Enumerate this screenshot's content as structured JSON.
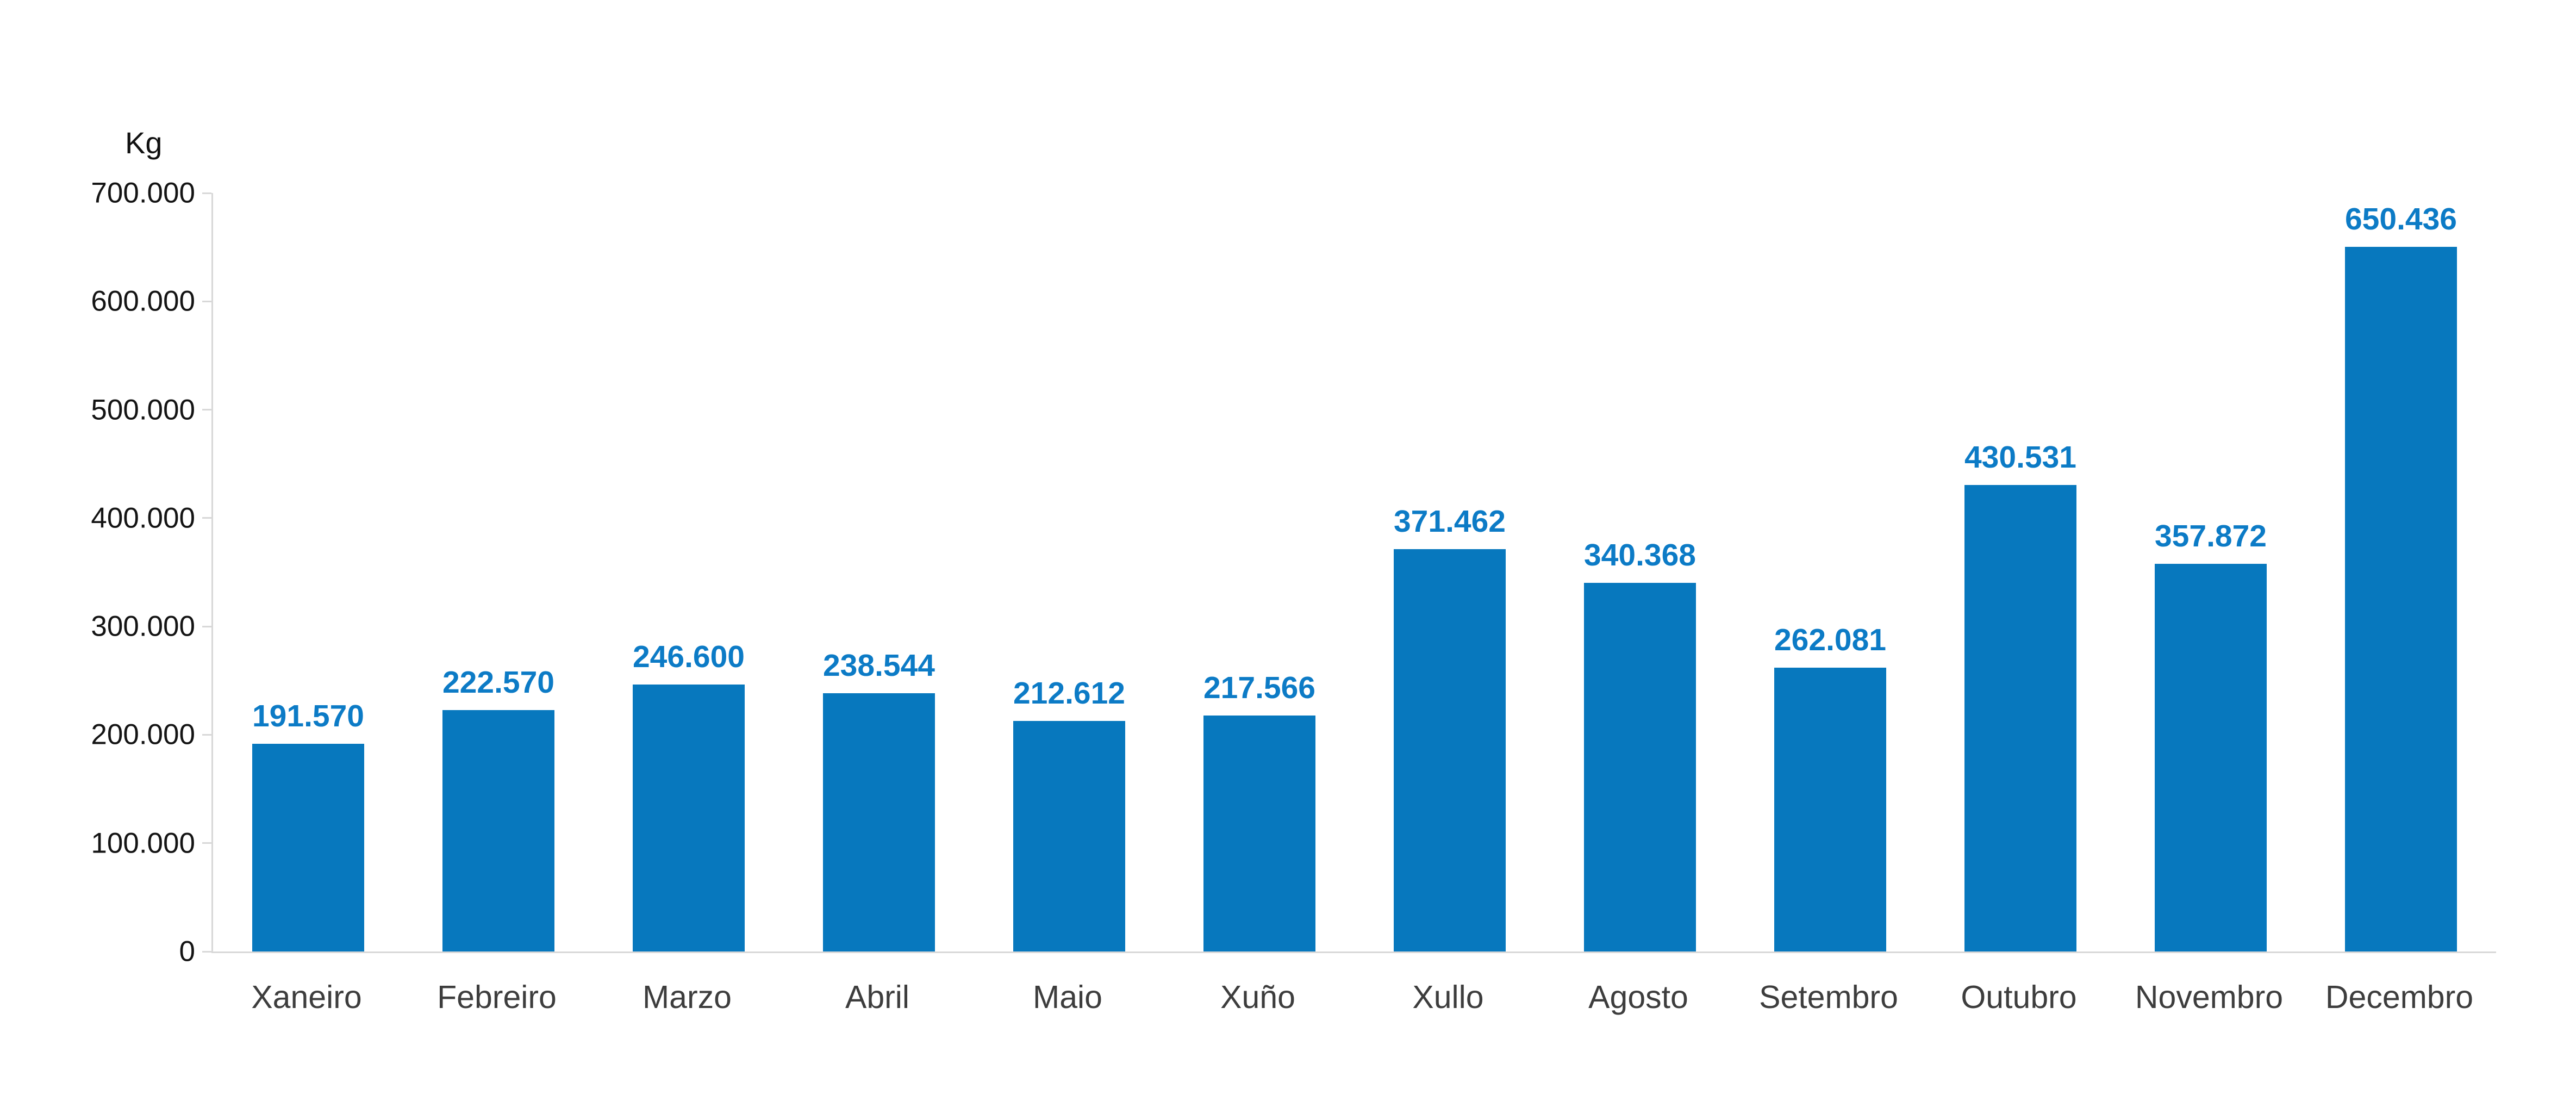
{
  "chart_data": {
    "type": "bar",
    "title": "",
    "xlabel": "",
    "ylabel": "Kg",
    "categories": [
      "Xaneiro",
      "Febreiro",
      "Marzo",
      "Abril",
      "Maio",
      "Xuño",
      "Xullo",
      "Agosto",
      "Setembro",
      "Outubro",
      "Novembro",
      "Decembro"
    ],
    "values": [
      191570,
      222570,
      246600,
      238544,
      212612,
      217566,
      371462,
      340368,
      262081,
      430531,
      357872,
      650436
    ],
    "value_labels": [
      "191.570",
      "222.570",
      "246.600",
      "238.544",
      "212.612",
      "217.566",
      "371.462",
      "340.368",
      "262.081",
      "430.531",
      "357.872",
      "650.436"
    ],
    "y_axis": {
      "min": 0,
      "max": 700000,
      "tick_step": 100000,
      "tick_labels": [
        "700.000",
        "600.000",
        "500.000",
        "400.000",
        "300.000",
        "200.000",
        "100.000",
        "0"
      ]
    },
    "grid": false,
    "legend_position": "none",
    "colors": {
      "bar": "#0778be",
      "value_label": "#0c7bc6",
      "axis_line": "#d8d8d8",
      "y_tick_label": "#141414",
      "x_tick_label": "#3d3d3d"
    }
  }
}
